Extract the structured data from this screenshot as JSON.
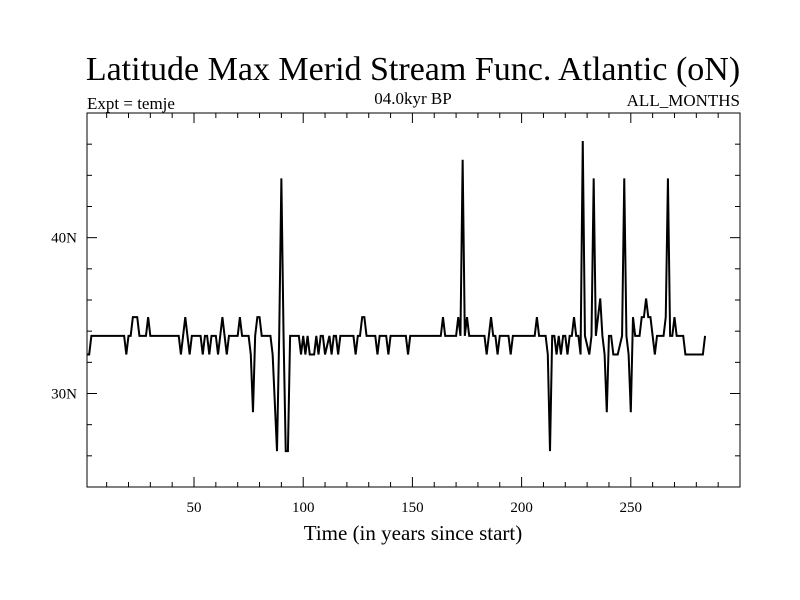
{
  "chart_data": {
    "type": "line",
    "title": "Latitude Max Merid Stream Func. Atlantic (oN)",
    "subtitle_left": "Expt = temje",
    "subtitle_center": "04.0kyr BP",
    "subtitle_right": "ALL_MONTHS",
    "xlabel": "Time (in years since start)",
    "ylabel": "",
    "xlim": [
      1,
      300
    ],
    "ylim": [
      24,
      48
    ],
    "x_ticks": [
      50,
      100,
      150,
      200,
      250
    ],
    "x_tick_labels": [
      "50",
      "100",
      "150",
      "200",
      "250"
    ],
    "y_ticks": [
      30,
      40
    ],
    "y_tick_labels": [
      "30N",
      "40N"
    ],
    "grid": false,
    "series": [
      {
        "color": "#000000",
        "points": [
          [
            1,
            32.5
          ],
          [
            2,
            32.5
          ],
          [
            3,
            33.7
          ],
          [
            18,
            33.7
          ],
          [
            19,
            32.5
          ],
          [
            20,
            33.7
          ],
          [
            21,
            33.7
          ],
          [
            22,
            34.9
          ],
          [
            24,
            34.9
          ],
          [
            25,
            33.7
          ],
          [
            28,
            33.7
          ],
          [
            29,
            34.9
          ],
          [
            30,
            33.7
          ],
          [
            43,
            33.7
          ],
          [
            44,
            32.5
          ],
          [
            45,
            33.7
          ],
          [
            46,
            34.9
          ],
          [
            47,
            33.7
          ],
          [
            48,
            32.5
          ],
          [
            49,
            33.7
          ],
          [
            53,
            33.7
          ],
          [
            54,
            32.5
          ],
          [
            55,
            33.7
          ],
          [
            56,
            33.7
          ],
          [
            57,
            32.5
          ],
          [
            58,
            33.7
          ],
          [
            60,
            33.7
          ],
          [
            61,
            32.5
          ],
          [
            62,
            33.7
          ],
          [
            63,
            34.9
          ],
          [
            64,
            33.7
          ],
          [
            65,
            32.5
          ],
          [
            66,
            33.7
          ],
          [
            70,
            33.7
          ],
          [
            71,
            34.9
          ],
          [
            72,
            33.7
          ],
          [
            75,
            33.7
          ],
          [
            76,
            32.5
          ],
          [
            77,
            28.8
          ],
          [
            78,
            33.7
          ],
          [
            79,
            34.9
          ],
          [
            80,
            34.9
          ],
          [
            81,
            33.7
          ],
          [
            85,
            33.7
          ],
          [
            86,
            32.5
          ],
          [
            88,
            26.3
          ],
          [
            89,
            33.7
          ],
          [
            90,
            43.8
          ],
          [
            91,
            33.7
          ],
          [
            92,
            26.3
          ],
          [
            93,
            26.3
          ],
          [
            94,
            33.7
          ],
          [
            98,
            33.7
          ],
          [
            99,
            32.5
          ],
          [
            100,
            33.7
          ],
          [
            101,
            32.5
          ],
          [
            102,
            33.7
          ],
          [
            103,
            32.5
          ],
          [
            105,
            32.5
          ],
          [
            106,
            33.7
          ],
          [
            107,
            32.5
          ],
          [
            108,
            33.7
          ],
          [
            109,
            33.7
          ],
          [
            110,
            32.5
          ],
          [
            112,
            33.7
          ],
          [
            113,
            32.5
          ],
          [
            114,
            33.7
          ],
          [
            115,
            33.7
          ],
          [
            116,
            32.5
          ],
          [
            117,
            33.7
          ],
          [
            123,
            33.7
          ],
          [
            124,
            32.5
          ],
          [
            125,
            33.7
          ],
          [
            126,
            33.7
          ],
          [
            127,
            34.9
          ],
          [
            128,
            34.9
          ],
          [
            129,
            33.7
          ],
          [
            133,
            33.7
          ],
          [
            134,
            32.5
          ],
          [
            135,
            33.7
          ],
          [
            138,
            33.7
          ],
          [
            139,
            32.5
          ],
          [
            140,
            33.7
          ],
          [
            147,
            33.7
          ],
          [
            148,
            32.5
          ],
          [
            149,
            33.7
          ],
          [
            163,
            33.7
          ],
          [
            164,
            34.9
          ],
          [
            165,
            33.7
          ],
          [
            170,
            33.7
          ],
          [
            171,
            34.9
          ],
          [
            172,
            33.7
          ],
          [
            173,
            45.0
          ],
          [
            174,
            33.7
          ],
          [
            175,
            34.9
          ],
          [
            176,
            33.7
          ],
          [
            183,
            33.7
          ],
          [
            184,
            32.5
          ],
          [
            185,
            33.7
          ],
          [
            186,
            34.9
          ],
          [
            187,
            33.7
          ],
          [
            188,
            33.7
          ],
          [
            189,
            32.5
          ],
          [
            190,
            33.7
          ],
          [
            194,
            33.7
          ],
          [
            195,
            32.5
          ],
          [
            196,
            33.7
          ],
          [
            206,
            33.7
          ],
          [
            207,
            34.9
          ],
          [
            208,
            33.7
          ],
          [
            211,
            33.7
          ],
          [
            212,
            32.5
          ],
          [
            213,
            26.3
          ],
          [
            214,
            33.7
          ],
          [
            215,
            33.7
          ],
          [
            216,
            32.5
          ],
          [
            217,
            33.7
          ],
          [
            218,
            32.5
          ],
          [
            219,
            33.7
          ],
          [
            220,
            33.7
          ],
          [
            221,
            32.5
          ],
          [
            222,
            33.7
          ],
          [
            223,
            33.7
          ],
          [
            224,
            34.9
          ],
          [
            225,
            33.7
          ],
          [
            226,
            33.7
          ],
          [
            227,
            32.5
          ],
          [
            228,
            46.2
          ],
          [
            229,
            33.7
          ],
          [
            231,
            32.5
          ],
          [
            232,
            33.7
          ],
          [
            233,
            43.8
          ],
          [
            234,
            33.7
          ],
          [
            235,
            34.9
          ],
          [
            236,
            36.1
          ],
          [
            237,
            33.7
          ],
          [
            238,
            32.5
          ],
          [
            239,
            28.8
          ],
          [
            240,
            33.7
          ],
          [
            241,
            33.7
          ],
          [
            242,
            32.5
          ],
          [
            244,
            32.5
          ],
          [
            246,
            33.7
          ],
          [
            247,
            43.8
          ],
          [
            248,
            33.7
          ],
          [
            249,
            32.5
          ],
          [
            250,
            28.8
          ],
          [
            251,
            34.9
          ],
          [
            252,
            33.7
          ],
          [
            254,
            33.7
          ],
          [
            255,
            34.9
          ],
          [
            256,
            34.9
          ],
          [
            257,
            36.1
          ],
          [
            258,
            34.9
          ],
          [
            259,
            34.9
          ],
          [
            260,
            33.7
          ],
          [
            261,
            32.5
          ],
          [
            262,
            33.7
          ],
          [
            265,
            33.7
          ],
          [
            266,
            34.9
          ],
          [
            267,
            43.8
          ],
          [
            268,
            33.7
          ],
          [
            269,
            33.7
          ],
          [
            270,
            34.9
          ],
          [
            271,
            33.7
          ],
          [
            274,
            33.7
          ],
          [
            275,
            32.5
          ],
          [
            276,
            32.5
          ],
          [
            282,
            32.5
          ],
          [
            283,
            32.5
          ],
          [
            284,
            33.7
          ]
        ]
      }
    ]
  }
}
